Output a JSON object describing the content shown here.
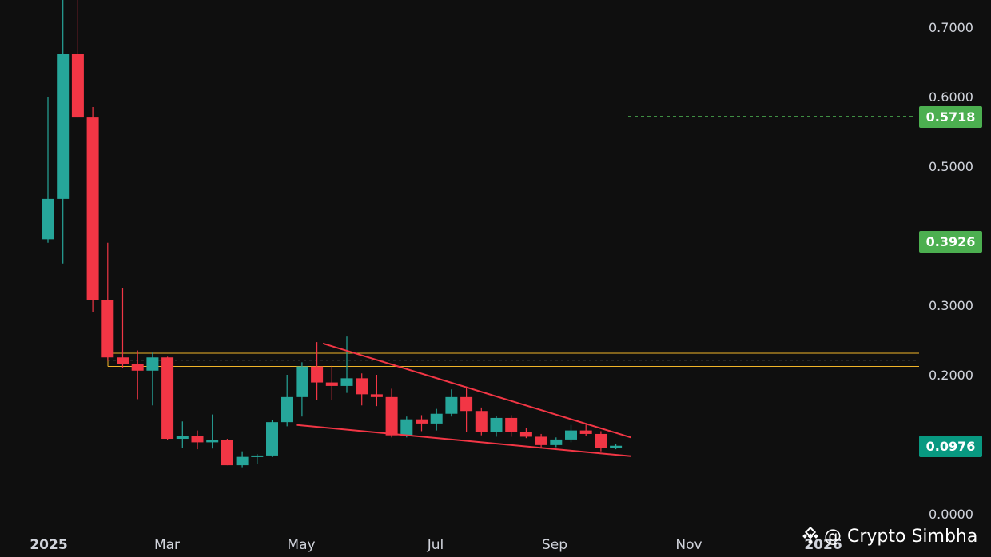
{
  "colors": {
    "background": "#0f0f0f",
    "up": "#26a69a",
    "down": "#f23645",
    "trendline": "#f23645",
    "zone": "#f0b429",
    "target_line": "#4caf50",
    "target_badge": "#4caf50",
    "price_badge": "#089981",
    "axis_text": "#d1d4dc"
  },
  "watermark": {
    "text": "@ Crypto Simbha",
    "icon": "diamond-logo-icon"
  },
  "chart_data": {
    "type": "candlestick",
    "interval": "weekly",
    "y_axis": {
      "range": [
        0.0,
        0.74
      ],
      "ticks": [
        "0.7000",
        "0.6000",
        "0.5000",
        "0.3000",
        "0.2000",
        "0.0000"
      ],
      "position": "right"
    },
    "x_axis": {
      "ticks": [
        "2025",
        "Mar",
        "May",
        "Jul",
        "Sep",
        "Nov",
        "2026"
      ]
    },
    "current_price": "0.0976",
    "price_levels": [
      {
        "label": "0.5718",
        "value": 0.5718,
        "style": "dashed"
      },
      {
        "label": "0.3926",
        "value": 0.3926,
        "style": "dashed"
      }
    ],
    "resistance_zone": {
      "upper": 0.231,
      "lower": 0.212,
      "mid": 0.221
    },
    "trendlines": [
      {
        "name": "upper",
        "from": {
          "week": 18.4,
          "price": 0.245
        },
        "to": {
          "week": 39.0,
          "price": 0.11
        }
      },
      {
        "name": "lower",
        "from": {
          "week": 16.6,
          "price": 0.128
        },
        "to": {
          "week": 39.0,
          "price": 0.083
        }
      }
    ],
    "candles": [
      {
        "o": 0.395,
        "h": 0.6,
        "l": 0.39,
        "c": 0.453
      },
      {
        "o": 0.453,
        "h": 0.74,
        "l": 0.36,
        "c": 0.662
      },
      {
        "o": 0.662,
        "h": 0.74,
        "l": 0.57,
        "c": 0.57
      },
      {
        "o": 0.57,
        "h": 0.585,
        "l": 0.29,
        "c": 0.308
      },
      {
        "o": 0.308,
        "h": 0.39,
        "l": 0.22,
        "c": 0.225
      },
      {
        "o": 0.225,
        "h": 0.325,
        "l": 0.21,
        "c": 0.215
      },
      {
        "o": 0.215,
        "h": 0.235,
        "l": 0.165,
        "c": 0.206
      },
      {
        "o": 0.206,
        "h": 0.232,
        "l": 0.156,
        "c": 0.225
      },
      {
        "o": 0.225,
        "h": 0.226,
        "l": 0.106,
        "c": 0.108
      },
      {
        "o": 0.108,
        "h": 0.133,
        "l": 0.095,
        "c": 0.112
      },
      {
        "o": 0.112,
        "h": 0.12,
        "l": 0.093,
        "c": 0.103
      },
      {
        "o": 0.103,
        "h": 0.143,
        "l": 0.094,
        "c": 0.106
      },
      {
        "o": 0.106,
        "h": 0.108,
        "l": 0.07,
        "c": 0.07
      },
      {
        "o": 0.07,
        "h": 0.09,
        "l": 0.066,
        "c": 0.082
      },
      {
        "o": 0.082,
        "h": 0.086,
        "l": 0.072,
        "c": 0.084
      },
      {
        "o": 0.084,
        "h": 0.135,
        "l": 0.082,
        "c": 0.132
      },
      {
        "o": 0.132,
        "h": 0.2,
        "l": 0.126,
        "c": 0.168
      },
      {
        "o": 0.168,
        "h": 0.218,
        "l": 0.14,
        "c": 0.212
      },
      {
        "o": 0.212,
        "h": 0.247,
        "l": 0.164,
        "c": 0.189
      },
      {
        "o": 0.189,
        "h": 0.213,
        "l": 0.164,
        "c": 0.184
      },
      {
        "o": 0.184,
        "h": 0.255,
        "l": 0.174,
        "c": 0.195
      },
      {
        "o": 0.195,
        "h": 0.202,
        "l": 0.156,
        "c": 0.172
      },
      {
        "o": 0.172,
        "h": 0.2,
        "l": 0.155,
        "c": 0.168
      },
      {
        "o": 0.168,
        "h": 0.18,
        "l": 0.11,
        "c": 0.113
      },
      {
        "o": 0.113,
        "h": 0.14,
        "l": 0.11,
        "c": 0.136
      },
      {
        "o": 0.136,
        "h": 0.142,
        "l": 0.119,
        "c": 0.13
      },
      {
        "o": 0.13,
        "h": 0.151,
        "l": 0.12,
        "c": 0.144
      },
      {
        "o": 0.144,
        "h": 0.179,
        "l": 0.14,
        "c": 0.168
      },
      {
        "o": 0.168,
        "h": 0.182,
        "l": 0.118,
        "c": 0.148
      },
      {
        "o": 0.148,
        "h": 0.153,
        "l": 0.113,
        "c": 0.118
      },
      {
        "o": 0.118,
        "h": 0.141,
        "l": 0.111,
        "c": 0.138
      },
      {
        "o": 0.138,
        "h": 0.142,
        "l": 0.111,
        "c": 0.118
      },
      {
        "o": 0.118,
        "h": 0.123,
        "l": 0.109,
        "c": 0.111
      },
      {
        "o": 0.111,
        "h": 0.115,
        "l": 0.096,
        "c": 0.099
      },
      {
        "o": 0.099,
        "h": 0.11,
        "l": 0.096,
        "c": 0.107
      },
      {
        "o": 0.107,
        "h": 0.128,
        "l": 0.103,
        "c": 0.12
      },
      {
        "o": 0.12,
        "h": 0.13,
        "l": 0.112,
        "c": 0.115
      },
      {
        "o": 0.115,
        "h": 0.119,
        "l": 0.09,
        "c": 0.095
      },
      {
        "o": 0.095,
        "h": 0.1,
        "l": 0.093,
        "c": 0.098
      }
    ]
  }
}
